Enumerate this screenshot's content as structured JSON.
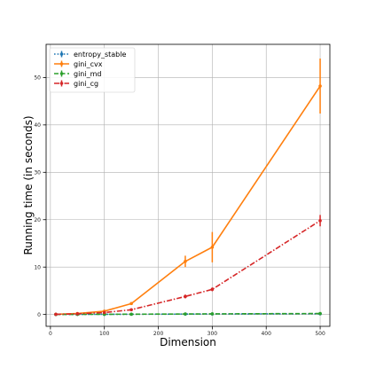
{
  "chart_data": {
    "type": "line",
    "title": "",
    "xlabel": "Dimension",
    "ylabel": "Running time (in seconds)",
    "xlim": [
      -8,
      518
    ],
    "ylim": [
      -2.5,
      57
    ],
    "xticks": [
      0,
      100,
      200,
      300,
      400,
      500
    ],
    "yticks": [
      0,
      10,
      20,
      30,
      40,
      50
    ],
    "grid": true,
    "legend_position": "top-left",
    "series": [
      {
        "name": "entropy_stable",
        "color": "#1f77b4",
        "linestyle": "dotted",
        "x": [
          10,
          50,
          100,
          150,
          250,
          300,
          500
        ],
        "y": [
          0.01,
          0.02,
          0.03,
          0.05,
          0.08,
          0.1,
          0.15
        ],
        "err": [
          0,
          0,
          0,
          0,
          0,
          0,
          0
        ]
      },
      {
        "name": "gini_cvx",
        "color": "#ff7f0e",
        "linestyle": "solid",
        "x": [
          10,
          50,
          100,
          150,
          250,
          300,
          500
        ],
        "y": [
          0.05,
          0.2,
          0.7,
          2.3,
          11.2,
          14.2,
          48.2
        ],
        "err": [
          0.02,
          0.05,
          0.1,
          0.2,
          1.2,
          3.2,
          5.8
        ]
      },
      {
        "name": "gini_md",
        "color": "#2ca02c",
        "linestyle": "dashed",
        "x": [
          10,
          50,
          100,
          150,
          250,
          300,
          500
        ],
        "y": [
          0.01,
          0.02,
          0.04,
          0.06,
          0.1,
          0.13,
          0.2
        ],
        "err": [
          0,
          0,
          0,
          0,
          0,
          0,
          0
        ]
      },
      {
        "name": "gini_cg",
        "color": "#d62728",
        "linestyle": "dashdot",
        "x": [
          10,
          50,
          100,
          150,
          250,
          300,
          500
        ],
        "y": [
          0.03,
          0.15,
          0.4,
          1.0,
          3.8,
          5.3,
          19.8
        ],
        "err": [
          0.01,
          0.03,
          0.05,
          0.1,
          0.4,
          0.4,
          1.2
        ]
      }
    ]
  }
}
